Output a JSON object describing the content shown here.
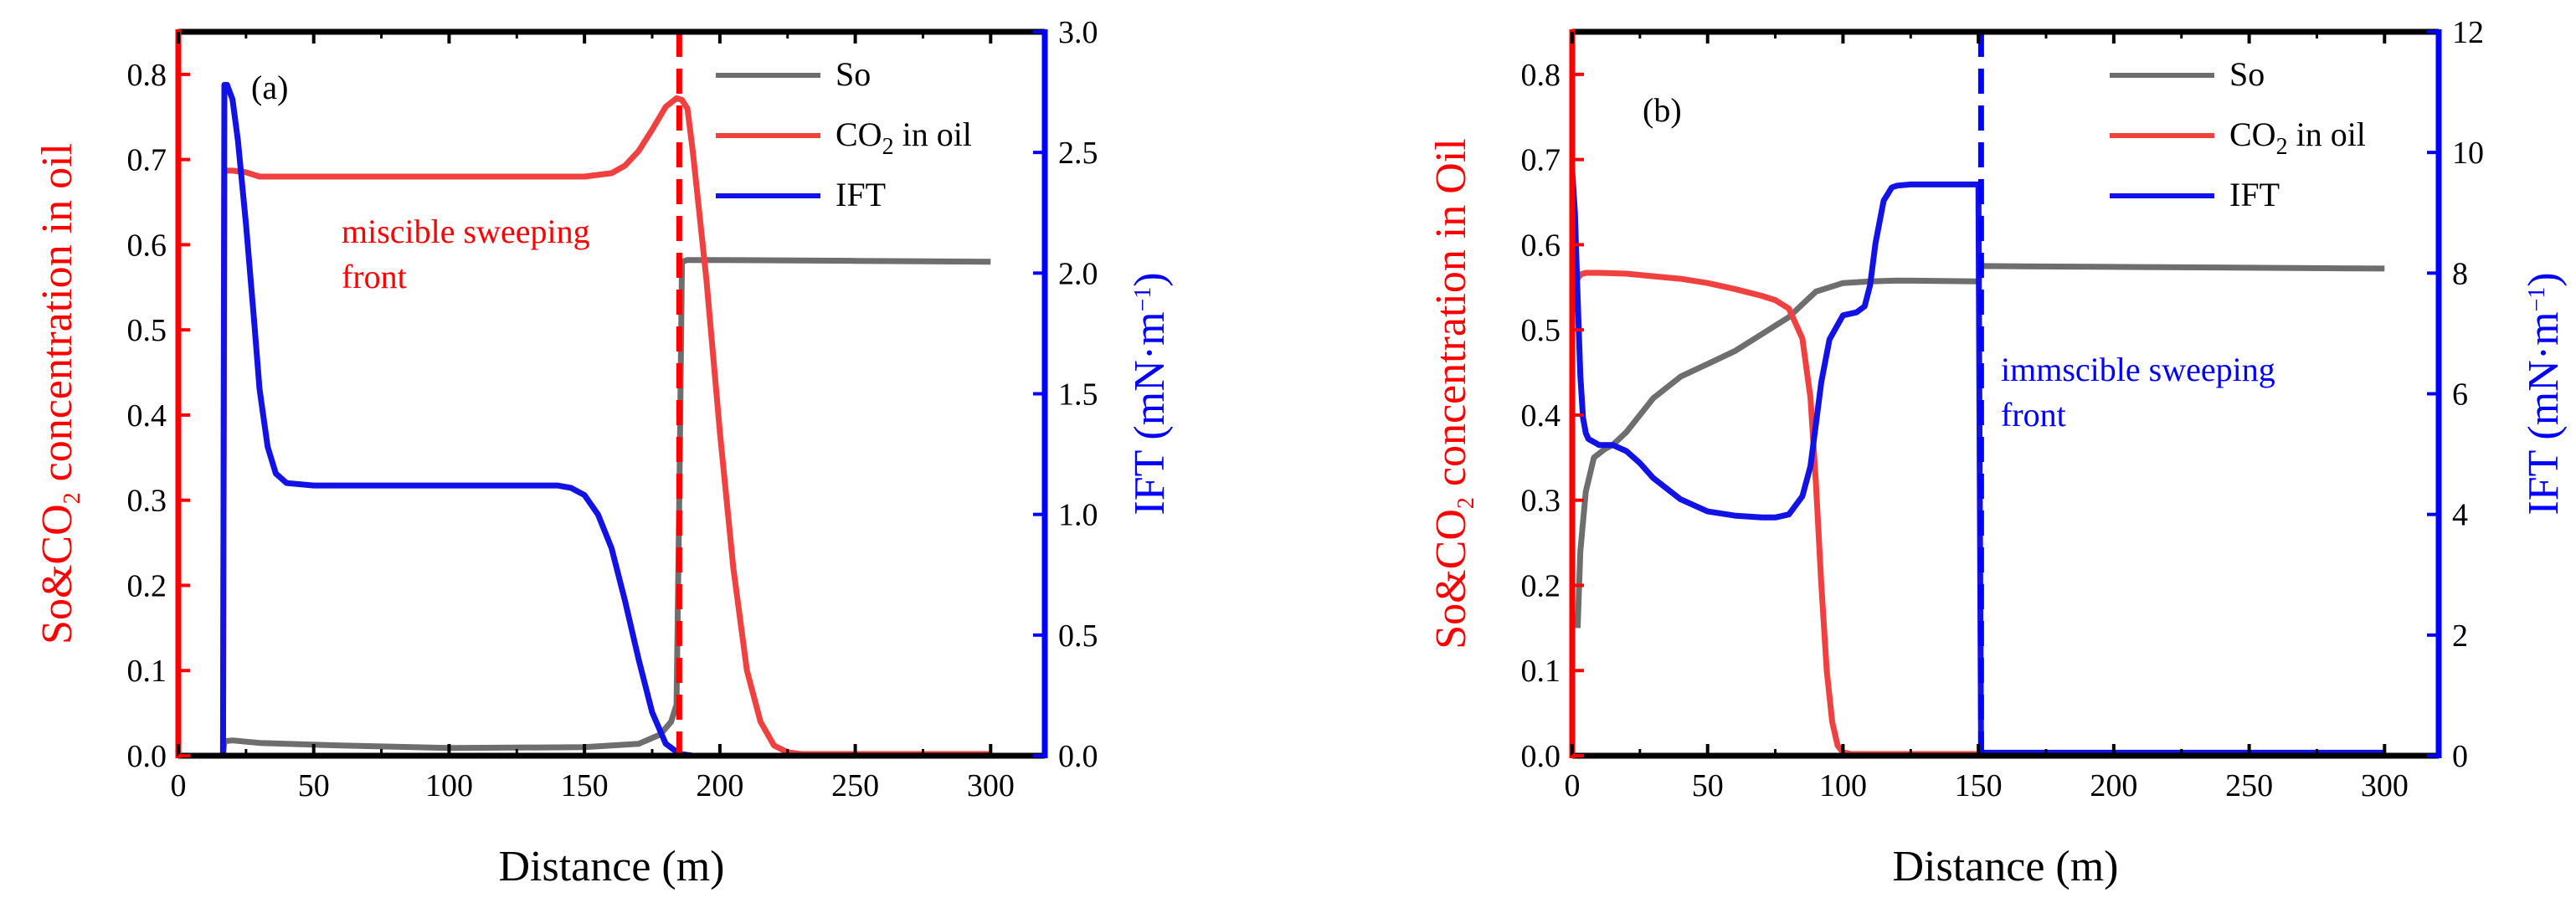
{
  "colors": {
    "left_axis": "#ff0000",
    "right_axis": "#0000ff",
    "so": "#6e6e6e",
    "co2": "#f04040",
    "ift": "#1212e6"
  },
  "chart_data": [
    {
      "type": "line",
      "panel_label": "(a)",
      "xlabel": "Distance (m)",
      "ylabel_left_parts": [
        "So&CO",
        "2",
        " concentration in oil"
      ],
      "ylabel_right_parts": [
        "IFT (mN·m",
        "−1",
        ")"
      ],
      "xlim": [
        0,
        320
      ],
      "ylim_left": [
        0,
        0.85
      ],
      "ylim_right": [
        0,
        3.0
      ],
      "xticks": [
        "0",
        "50",
        "100",
        "150",
        "200",
        "250",
        "300"
      ],
      "xtick_values": [
        0,
        50,
        100,
        150,
        200,
        250,
        300
      ],
      "yticks_left": [
        "0.0",
        "0.1",
        "0.2",
        "0.3",
        "0.4",
        "0.5",
        "0.6",
        "0.7",
        "0.8"
      ],
      "ytick_values_left": [
        0,
        0.1,
        0.2,
        0.3,
        0.4,
        0.5,
        0.6,
        0.7,
        0.8
      ],
      "yticks_right": [
        "0.0",
        "0.5",
        "1.0",
        "1.5",
        "2.0",
        "2.5",
        "3.0"
      ],
      "ytick_values_right": [
        0,
        0.5,
        1.0,
        1.5,
        2.0,
        2.5,
        3.0
      ],
      "front_x": 185,
      "front_color": "#ff0000",
      "annotation_lines": [
        "miscible sweeping",
        "front"
      ],
      "annotation_color": "#ff0000",
      "series": [
        {
          "name": "So",
          "name_parts": [
            "So"
          ],
          "axis": "left",
          "color": "#6e6e6e",
          "x": [
            16.5,
            17,
            20,
            30,
            60,
            100,
            150,
            170,
            178,
            182,
            184,
            185,
            186,
            188,
            200,
            250,
            300
          ],
          "y": [
            0,
            0.017,
            0.018,
            0.015,
            0.012,
            0.009,
            0.01,
            0.014,
            0.025,
            0.04,
            0.06,
            0.3,
            0.58,
            0.582,
            0.582,
            0.581,
            0.58
          ]
        },
        {
          "name": "CO2 in oil",
          "name_parts": [
            "CO",
            "2",
            " in oil"
          ],
          "axis": "left",
          "color": "#f04040",
          "x": [
            16.5,
            17,
            20,
            25,
            30,
            50,
            100,
            150,
            160,
            165,
            170,
            175,
            180,
            184,
            186,
            188,
            190,
            195,
            200,
            205,
            210,
            215,
            220,
            225,
            230,
            300
          ],
          "y": [
            0,
            0.687,
            0.687,
            0.685,
            0.68,
            0.68,
            0.68,
            0.68,
            0.684,
            0.693,
            0.71,
            0.735,
            0.762,
            0.772,
            0.77,
            0.76,
            0.71,
            0.56,
            0.38,
            0.22,
            0.1,
            0.04,
            0.012,
            0.004,
            0.002,
            0.002
          ]
        },
        {
          "name": "IFT",
          "name_parts": [
            "IFT"
          ],
          "axis": "right",
          "color": "#1212e6",
          "x": [
            16.5,
            17,
            18,
            20,
            22,
            25,
            28,
            30,
            33,
            36,
            40,
            50,
            100,
            140,
            145,
            150,
            155,
            160,
            165,
            170,
            175,
            180,
            185,
            190,
            200,
            300
          ],
          "y": [
            0,
            2.78,
            2.78,
            2.72,
            2.55,
            2.2,
            1.8,
            1.52,
            1.28,
            1.17,
            1.13,
            1.12,
            1.12,
            1.12,
            1.11,
            1.08,
            1.0,
            0.86,
            0.64,
            0.4,
            0.18,
            0.05,
            0.008,
            0.0,
            0.0,
            0.0
          ]
        }
      ]
    },
    {
      "type": "line",
      "panel_label": "(b)",
      "xlabel": "Distance (m)",
      "ylabel_left_parts": [
        "So&CO",
        "2",
        " concentration in Oil"
      ],
      "ylabel_right_parts": [
        "IFT (mN·m",
        "−1",
        ")"
      ],
      "xlim": [
        0,
        320
      ],
      "ylim_left": [
        0,
        0.85
      ],
      "ylim_right": [
        0,
        12
      ],
      "xticks": [
        "0",
        "50",
        "100",
        "150",
        "200",
        "250",
        "300"
      ],
      "xtick_values": [
        0,
        50,
        100,
        150,
        200,
        250,
        300
      ],
      "yticks_left": [
        "0.0",
        "0.1",
        "0.2",
        "0.3",
        "0.4",
        "0.5",
        "0.6",
        "0.7",
        "0.8"
      ],
      "ytick_values_left": [
        0,
        0.1,
        0.2,
        0.3,
        0.4,
        0.5,
        0.6,
        0.7,
        0.8
      ],
      "yticks_right": [
        "0",
        "2",
        "4",
        "6",
        "8",
        "10",
        "12"
      ],
      "ytick_values_right": [
        0,
        2,
        4,
        6,
        8,
        10,
        12
      ],
      "front_x": 151,
      "front_color": "#0000ff",
      "annotation_lines": [
        "immscible sweeping",
        "front"
      ],
      "annotation_color": "#0000ff",
      "series": [
        {
          "name": "So",
          "name_parts": [
            "So"
          ],
          "axis": "left",
          "color": "#6e6e6e",
          "x": [
            2,
            3,
            5,
            8,
            12,
            15,
            20,
            30,
            40,
            50,
            60,
            70,
            80,
            85,
            90,
            95,
            100,
            110,
            120,
            150,
            151,
            200,
            250,
            300
          ],
          "y": [
            0.15,
            0.24,
            0.31,
            0.35,
            0.36,
            0.365,
            0.38,
            0.42,
            0.445,
            0.46,
            0.475,
            0.495,
            0.515,
            0.53,
            0.545,
            0.55,
            0.555,
            0.557,
            0.558,
            0.557,
            0.575,
            0.574,
            0.573,
            0.572
          ]
        },
        {
          "name": "CO2 in oil",
          "name_parts": [
            "CO",
            "2",
            " in oil"
          ],
          "axis": "left",
          "color": "#f04040",
          "x": [
            2,
            3,
            5,
            10,
            20,
            30,
            40,
            50,
            60,
            70,
            75,
            80,
            85,
            88,
            90,
            92,
            94,
            96,
            98,
            100,
            103,
            110,
            150,
            200,
            300
          ],
          "y": [
            0.56,
            0.565,
            0.567,
            0.567,
            0.566,
            0.563,
            0.56,
            0.555,
            0.548,
            0.54,
            0.535,
            0.525,
            0.49,
            0.42,
            0.32,
            0.2,
            0.1,
            0.04,
            0.012,
            0.004,
            0.002,
            0.002,
            0.002,
            0.002,
            0.002
          ]
        },
        {
          "name": "IFT",
          "name_parts": [
            "IFT"
          ],
          "axis": "right",
          "color": "#1212e6",
          "x": [
            0,
            1,
            2,
            3,
            4,
            5,
            6,
            8,
            10,
            15,
            20,
            25,
            30,
            40,
            50,
            60,
            70,
            75,
            80,
            85,
            88,
            90,
            92,
            95,
            100,
            105,
            108,
            110,
            112,
            115,
            118,
            120,
            125,
            130,
            140,
            150,
            150.5,
            151,
            160,
            200,
            250,
            300
          ],
          "y": [
            9.7,
            9.0,
            7.6,
            6.3,
            5.6,
            5.35,
            5.25,
            5.2,
            5.15,
            5.15,
            5.05,
            4.85,
            4.6,
            4.25,
            4.05,
            3.98,
            3.95,
            3.95,
            4.0,
            4.3,
            4.8,
            5.5,
            6.2,
            6.9,
            7.3,
            7.35,
            7.45,
            7.8,
            8.5,
            9.2,
            9.42,
            9.45,
            9.47,
            9.47,
            9.47,
            9.47,
            4.5,
            0.05,
            0.05,
            0.05,
            0.05,
            0.05
          ]
        }
      ]
    }
  ]
}
